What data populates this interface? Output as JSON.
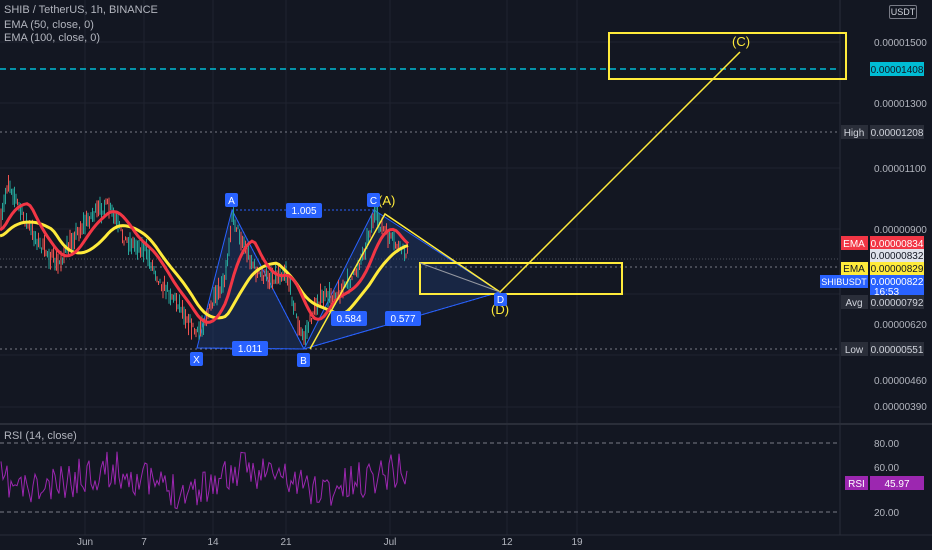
{
  "header": {
    "title": "SHIB / TetherUS, 1h, BINANCE",
    "ema50": "EMA (50, close, 0)",
    "ema100": "EMA (100, close, 0)",
    "currency": "USDT"
  },
  "rsi_panel": {
    "title": "RSI (14, close)"
  },
  "colors": {
    "background": "#131722",
    "grid": "#2a2e39",
    "ema_fast": "#f23645",
    "ema_slow": "#ffeb3b",
    "pattern_fill": "#1e3a6e",
    "pattern_label": "#2962ff",
    "projection": "#ffeb3b",
    "cyan_level": "#00bcd4",
    "rsi_line": "#9c27b0"
  },
  "chart_data": [
    {
      "type": "line",
      "name": "price",
      "y_ticks": [
        "0.00000390",
        "0.00000460",
        "0.00000620",
        "0.00000900",
        "0.00001100",
        "0.00001300",
        "0.00001500"
      ],
      "x_ticks": [
        "Jun",
        "7",
        "14",
        "21",
        "Jul",
        "12",
        "19"
      ],
      "price_labels": [
        {
          "tag": "High",
          "value": "0.00001208"
        },
        {
          "tag": "EMA",
          "value": "0.00000834"
        },
        {
          "tag": "",
          "value": "0.00000832"
        },
        {
          "tag": "EMA",
          "value": "0.00000829"
        },
        {
          "tag": "SHIBUSDT",
          "value": "0.00000822"
        },
        {
          "tag": "Avg",
          "value": "0.00000792"
        },
        {
          "tag": "Low",
          "value": "0.00000551"
        },
        {
          "tag": "",
          "value": "0.00001408"
        }
      ],
      "countdown": "16:53",
      "harmonic_points": [
        "X",
        "A",
        "B",
        "C",
        "D"
      ],
      "harmonic_ratios": [
        "1.005",
        "1.011",
        "0.584",
        "0.577"
      ],
      "projection_labels": [
        "(A)",
        "(C)",
        "(D)"
      ]
    },
    {
      "type": "line",
      "name": "RSI",
      "y_ticks": [
        "80.00",
        "60.00",
        "20.00"
      ],
      "current": {
        "tag": "RSI",
        "value": "45.97"
      }
    }
  ]
}
